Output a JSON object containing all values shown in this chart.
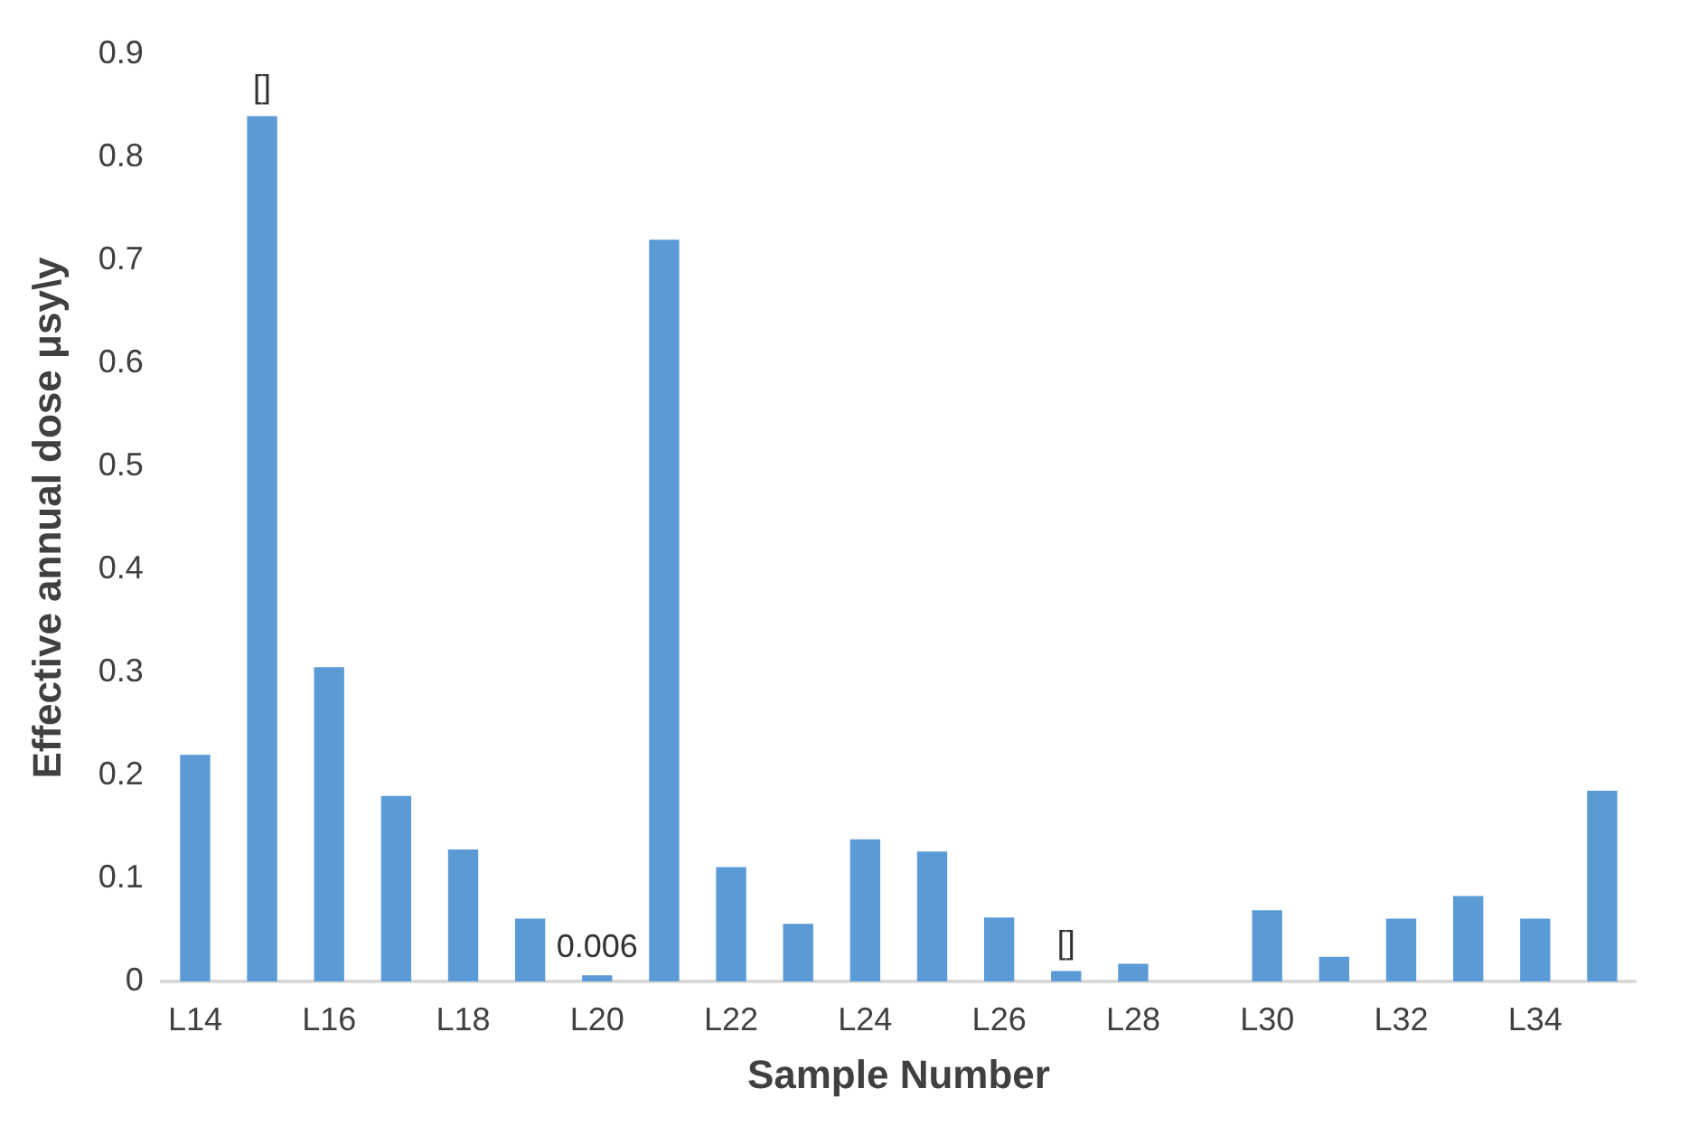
{
  "chart_data": {
    "type": "bar",
    "xlabel": "Sample Number",
    "ylabel": "Effective annual dose μsy\\y",
    "categories": [
      "L14",
      null,
      "L16",
      null,
      "L18",
      null,
      "L20",
      null,
      "L22",
      null,
      "L24",
      null,
      "L26",
      null,
      "L28",
      null,
      "L30",
      null,
      "L32",
      null,
      "L34",
      null
    ],
    "values": [
      0.22,
      0.84,
      0.305,
      0.18,
      0.128,
      0.061,
      0.006,
      0.72,
      0.111,
      0.056,
      0.138,
      0.126,
      0.062,
      0.01,
      0.017,
      0,
      0.069,
      0.024,
      0.061,
      0.083,
      0.061,
      0.185
    ],
    "value_labels": [
      null,
      "[]",
      null,
      null,
      null,
      null,
      "0.006",
      null,
      null,
      null,
      null,
      null,
      null,
      "[]",
      null,
      null,
      null,
      null,
      null,
      null,
      null,
      null
    ],
    "color": "#5b9bd5",
    "ylim": [
      0,
      0.9
    ],
    "yticks": [
      0,
      0.1,
      0.2,
      0.3,
      0.4,
      0.5,
      0.6,
      0.7,
      0.8,
      0.9
    ],
    "grid": false,
    "legend": false
  }
}
